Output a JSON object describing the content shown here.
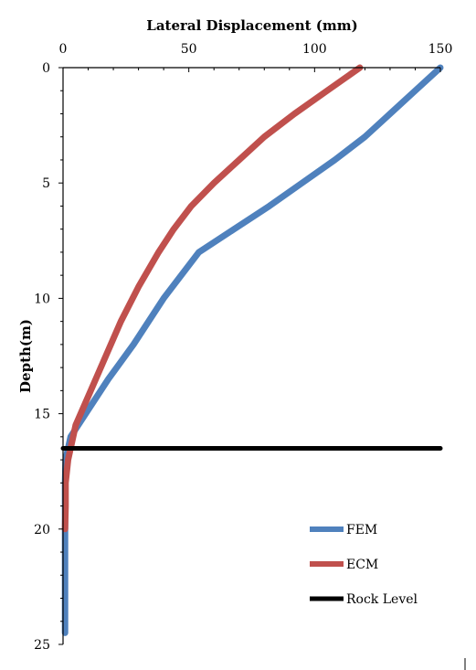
{
  "chart_data": {
    "type": "line",
    "xlabel": "Lateral Displacement (mm)",
    "ylabel": "Depth(m)",
    "xlim": [
      0,
      150
    ],
    "ylim": [
      0,
      25
    ],
    "y_inverted": true,
    "x_axis_position": "top",
    "x_ticks": [
      0,
      50,
      100,
      150
    ],
    "y_ticks": [
      0,
      5,
      10,
      15,
      20,
      25
    ],
    "grid": false,
    "legend_position": "bottom-right",
    "series": [
      {
        "name": "FEM",
        "color": "#4f81bd",
        "points": [
          [
            150,
            0
          ],
          [
            140,
            1
          ],
          [
            130,
            2
          ],
          [
            120,
            3
          ],
          [
            108,
            4
          ],
          [
            95,
            5
          ],
          [
            82,
            6
          ],
          [
            68,
            7
          ],
          [
            54,
            8
          ],
          [
            40,
            10
          ],
          [
            28,
            12
          ],
          [
            18,
            13.5
          ],
          [
            9,
            15
          ],
          [
            3,
            16
          ],
          [
            1,
            17
          ],
          [
            0.8,
            18
          ],
          [
            0.8,
            20
          ],
          [
            0.8,
            22
          ],
          [
            0.8,
            24.5
          ]
        ]
      },
      {
        "name": "ECM",
        "color": "#c0504d",
        "points": [
          [
            118,
            0
          ],
          [
            105,
            1
          ],
          [
            92,
            2
          ],
          [
            80,
            3
          ],
          [
            70,
            4
          ],
          [
            60,
            5
          ],
          [
            51,
            6
          ],
          [
            44,
            7
          ],
          [
            38,
            8
          ],
          [
            30,
            9.5
          ],
          [
            23,
            11
          ],
          [
            17,
            12.5
          ],
          [
            11,
            14
          ],
          [
            5,
            15.5
          ],
          [
            2,
            17
          ],
          [
            1,
            18
          ],
          [
            1,
            19
          ],
          [
            0.8,
            20
          ]
        ]
      },
      {
        "name": "Rock Level",
        "color": "#000000",
        "points": [
          [
            0,
            16.5
          ],
          [
            150,
            16.5
          ]
        ]
      }
    ]
  }
}
